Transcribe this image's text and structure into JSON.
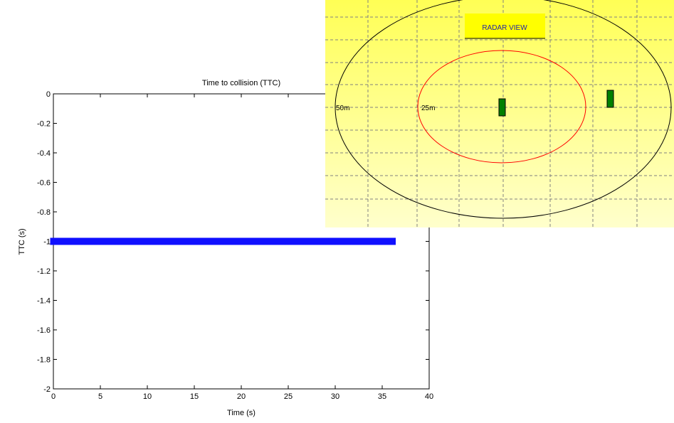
{
  "ttc_plot": {
    "chart_data": {
      "type": "scatter",
      "title": "Time to collision (TTC)",
      "xlabel": "Time (s)",
      "ylabel": "TTC (s)",
      "xlim": [
        0,
        40
      ],
      "ylim": [
        -2,
        0
      ],
      "xticks": [
        0,
        5,
        10,
        15,
        20,
        25,
        30,
        35,
        40
      ],
      "yticks": [
        0,
        -0.2,
        -0.4,
        -0.6,
        -0.8,
        -1,
        -1.2,
        -1.4,
        -1.6,
        -1.8,
        -2
      ],
      "grid": false,
      "series": [
        {
          "marker": "square",
          "color": "#1010ff",
          "x_start": 0,
          "x_end": 36.1,
          "x_step": 0.1,
          "y": -1
        }
      ]
    }
  },
  "radar": {
    "title": "RADAR VIEW",
    "rings": [
      {
        "label": "50m",
        "color": "#000000"
      },
      {
        "label": "25m",
        "color": "#ff0000"
      }
    ],
    "targets": [
      {
        "name": "target-1",
        "color": "#008000"
      },
      {
        "name": "target-2",
        "color": "#008000"
      }
    ],
    "colors": {
      "background_top": "#ffff55",
      "background_bottom": "#ffffcc",
      "grid": "#808080",
      "title_box": "#ffff00",
      "title_text": "#2222aa"
    }
  }
}
